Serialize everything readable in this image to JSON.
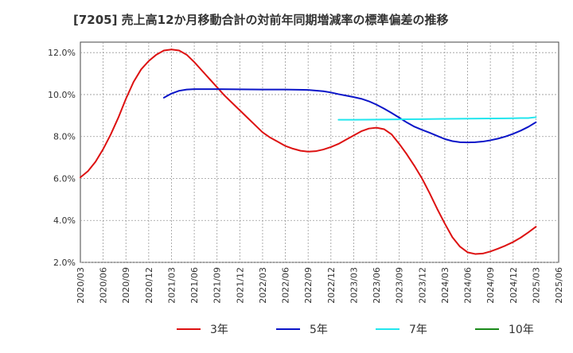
{
  "chart_data": {
    "type": "line",
    "title": "[7205]  売上高12か月移動合計の対前年同期増減率の標準偏差の推移",
    "xlabel": "",
    "ylabel": "",
    "x_ticks": [
      "2020/03",
      "2020/06",
      "2020/09",
      "2020/12",
      "2021/03",
      "2021/06",
      "2021/09",
      "2021/12",
      "2022/03",
      "2022/06",
      "2022/09",
      "2022/12",
      "2023/03",
      "2023/06",
      "2023/09",
      "2023/12",
      "2024/03",
      "2024/06",
      "2024/09",
      "2024/12",
      "2025/03",
      "2025/06"
    ],
    "y_ticks": [
      "2.0%",
      "4.0%",
      "6.0%",
      "8.0%",
      "10.0%",
      "12.0%"
    ],
    "ylim": [
      2.0,
      12.5
    ],
    "grid": true,
    "legend_position": "bottom",
    "series": [
      {
        "name": "3年",
        "color": "#dd1111",
        "points": [
          [
            "2020/03",
            6.05
          ],
          [
            "2020/04",
            6.35
          ],
          [
            "2020/05",
            6.8
          ],
          [
            "2020/06",
            7.4
          ],
          [
            "2020/07",
            8.1
          ],
          [
            "2020/08",
            8.9
          ],
          [
            "2020/09",
            9.8
          ],
          [
            "2020/10",
            10.6
          ],
          [
            "2020/11",
            11.2
          ],
          [
            "2020/12",
            11.6
          ],
          [
            "2021/01",
            11.9
          ],
          [
            "2021/02",
            12.1
          ],
          [
            "2021/03",
            12.15
          ],
          [
            "2021/04",
            12.1
          ],
          [
            "2021/05",
            11.9
          ],
          [
            "2021/06",
            11.55
          ],
          [
            "2021/07",
            11.15
          ],
          [
            "2021/08",
            10.75
          ],
          [
            "2021/09",
            10.35
          ],
          [
            "2021/10",
            9.95
          ],
          [
            "2021/11",
            9.6
          ],
          [
            "2021/12",
            9.25
          ],
          [
            "2022/01",
            8.9
          ],
          [
            "2022/02",
            8.55
          ],
          [
            "2022/03",
            8.2
          ],
          [
            "2022/04",
            7.95
          ],
          [
            "2022/05",
            7.75
          ],
          [
            "2022/06",
            7.55
          ],
          [
            "2022/07",
            7.42
          ],
          [
            "2022/08",
            7.32
          ],
          [
            "2022/09",
            7.28
          ],
          [
            "2022/10",
            7.3
          ],
          [
            "2022/11",
            7.38
          ],
          [
            "2022/12",
            7.5
          ],
          [
            "2023/01",
            7.65
          ],
          [
            "2023/02",
            7.85
          ],
          [
            "2023/03",
            8.05
          ],
          [
            "2023/04",
            8.25
          ],
          [
            "2023/05",
            8.38
          ],
          [
            "2023/06",
            8.42
          ],
          [
            "2023/07",
            8.35
          ],
          [
            "2023/08",
            8.1
          ],
          [
            "2023/09",
            7.65
          ],
          [
            "2023/10",
            7.15
          ],
          [
            "2023/11",
            6.6
          ],
          [
            "2023/12",
            6.0
          ],
          [
            "2024/01",
            5.3
          ],
          [
            "2024/02",
            4.55
          ],
          [
            "2024/03",
            3.85
          ],
          [
            "2024/04",
            3.2
          ],
          [
            "2024/05",
            2.75
          ],
          [
            "2024/06",
            2.48
          ],
          [
            "2024/07",
            2.4
          ],
          [
            "2024/08",
            2.42
          ],
          [
            "2024/09",
            2.52
          ],
          [
            "2024/10",
            2.65
          ],
          [
            "2024/11",
            2.8
          ],
          [
            "2024/12",
            2.97
          ],
          [
            "2025/01",
            3.18
          ],
          [
            "2025/02",
            3.43
          ],
          [
            "2025/03",
            3.7
          ]
        ]
      },
      {
        "name": "5年",
        "color": "#0a14c8",
        "points": [
          [
            "2021/02",
            9.85
          ],
          [
            "2021/03",
            10.05
          ],
          [
            "2021/04",
            10.18
          ],
          [
            "2021/05",
            10.24
          ],
          [
            "2021/06",
            10.26
          ],
          [
            "2021/09",
            10.26
          ],
          [
            "2021/12",
            10.25
          ],
          [
            "2022/03",
            10.24
          ],
          [
            "2022/06",
            10.24
          ],
          [
            "2022/09",
            10.22
          ],
          [
            "2022/11",
            10.16
          ],
          [
            "2022/12",
            10.1
          ],
          [
            "2023/01",
            10.02
          ],
          [
            "2023/02",
            9.95
          ],
          [
            "2023/03",
            9.88
          ],
          [
            "2023/04",
            9.8
          ],
          [
            "2023/05",
            9.68
          ],
          [
            "2023/06",
            9.52
          ],
          [
            "2023/07",
            9.33
          ],
          [
            "2023/08",
            9.12
          ],
          [
            "2023/09",
            8.9
          ],
          [
            "2023/10",
            8.67
          ],
          [
            "2023/11",
            8.47
          ],
          [
            "2023/12",
            8.32
          ],
          [
            "2024/01",
            8.18
          ],
          [
            "2024/02",
            8.03
          ],
          [
            "2024/03",
            7.88
          ],
          [
            "2024/04",
            7.78
          ],
          [
            "2024/05",
            7.73
          ],
          [
            "2024/06",
            7.72
          ],
          [
            "2024/07",
            7.73
          ],
          [
            "2024/08",
            7.76
          ],
          [
            "2024/09",
            7.82
          ],
          [
            "2024/10",
            7.9
          ],
          [
            "2024/11",
            8.0
          ],
          [
            "2024/12",
            8.13
          ],
          [
            "2025/01",
            8.28
          ],
          [
            "2025/02",
            8.46
          ],
          [
            "2025/03",
            8.68
          ]
        ]
      },
      {
        "name": "7年",
        "color": "#22e6ee",
        "points": [
          [
            "2023/01",
            8.8
          ],
          [
            "2023/03",
            8.8
          ],
          [
            "2023/06",
            8.81
          ],
          [
            "2023/09",
            8.82
          ],
          [
            "2023/12",
            8.83
          ],
          [
            "2024/03",
            8.84
          ],
          [
            "2024/06",
            8.85
          ],
          [
            "2024/09",
            8.86
          ],
          [
            "2024/12",
            8.87
          ],
          [
            "2025/01",
            8.88
          ],
          [
            "2025/02",
            8.88
          ],
          [
            "2025/03",
            8.92
          ]
        ]
      },
      {
        "name": "10年",
        "color": "#1a8a1a",
        "points": []
      }
    ]
  }
}
